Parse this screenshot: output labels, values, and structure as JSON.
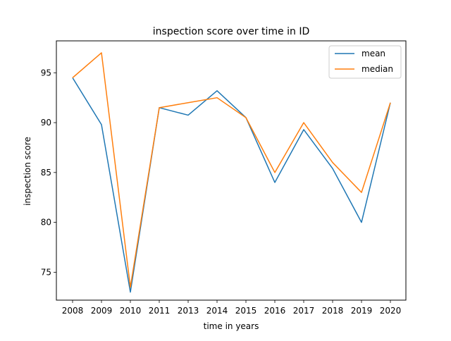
{
  "chart_data": {
    "type": "line",
    "title": "inspection score over time in ID",
    "xlabel": "time in years",
    "ylabel": "inspection score",
    "categories": [
      "2008",
      "2009",
      "2010",
      "2011",
      "2013",
      "2014",
      "2015",
      "2016",
      "2017",
      "2018",
      "2019",
      "2020"
    ],
    "yticks": [
      75,
      80,
      85,
      90,
      95
    ],
    "ylim": [
      72.2,
      98.2
    ],
    "grid": false,
    "legend_position": "top-right",
    "series": [
      {
        "name": "mean",
        "color": "#1f77b4",
        "values": [
          94.5,
          89.8,
          73.0,
          91.5,
          90.75,
          93.2,
          90.5,
          84.0,
          89.3,
          85.4,
          80.0,
          92.0
        ]
      },
      {
        "name": "median",
        "color": "#ff7f0e",
        "values": [
          94.5,
          97.0,
          73.5,
          91.5,
          92.0,
          92.5,
          90.5,
          85.0,
          90.0,
          86.0,
          83.0,
          92.0
        ]
      }
    ]
  }
}
